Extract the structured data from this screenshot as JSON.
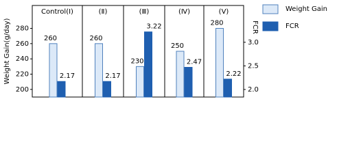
{
  "chart_data": {
    "type": "bar",
    "categories": [
      "Control(Ⅰ)",
      "(Ⅱ)",
      "(Ⅲ)",
      "(Ⅳ)",
      "(Ⅴ)"
    ],
    "series": [
      {
        "name": "Weight Gain",
        "color": "#dce9f8",
        "values": [
          260,
          260,
          230,
          250,
          280
        ]
      },
      {
        "name": "FCR",
        "color": "#1f5fb0",
        "axis": "y2",
        "values": [
          2.17,
          2.17,
          3.22,
          2.47,
          2.22
        ]
      }
    ],
    "y_label": "Weight Gain(g/day)",
    "y2_label": "FCR",
    "ylim": [
      190,
      310
    ],
    "yticks": [
      200,
      220,
      240,
      260,
      280
    ],
    "y2lim": [
      1.84,
      3.78
    ],
    "y2ticks": [
      {
        "value": 2,
        "label": "2.0"
      },
      2.5,
      {
        "value": 3,
        "label": "3.0"
      }
    ],
    "legend": "right"
  }
}
